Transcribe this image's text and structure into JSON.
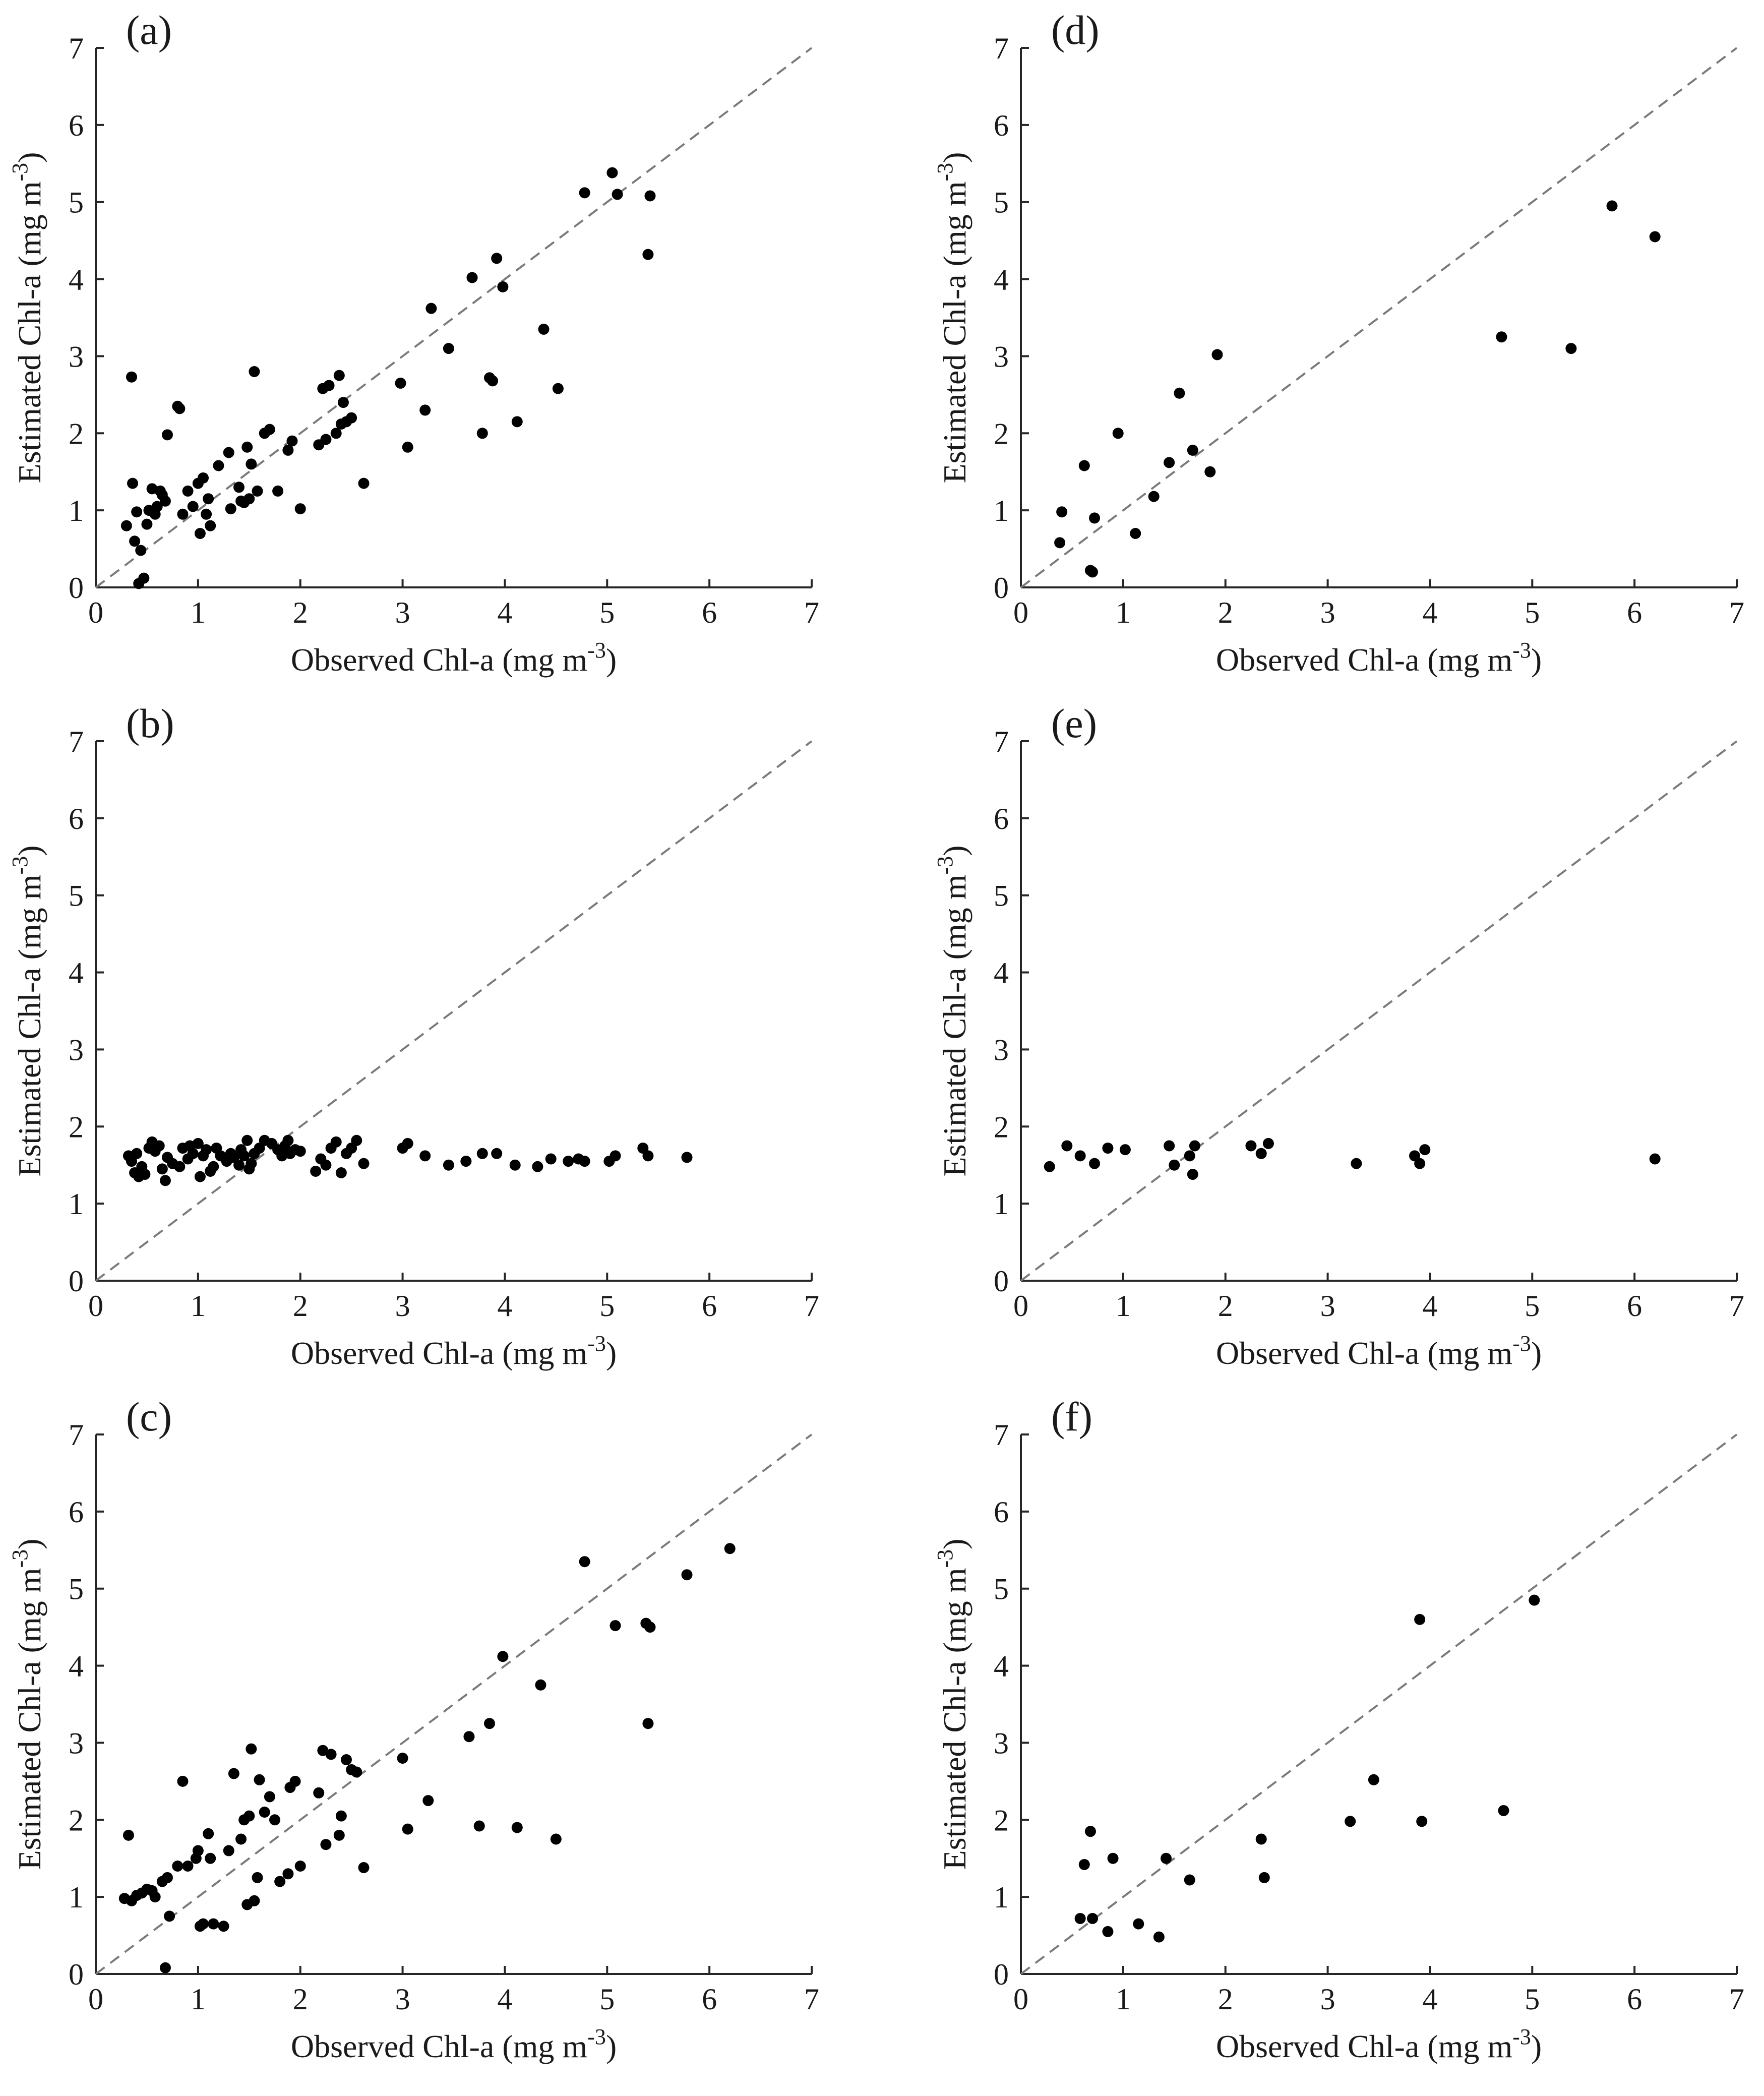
{
  "chart_data": [
    {
      "id": "a",
      "type": "scatter",
      "panel_label": "(a)",
      "xlabel": "Observed Chl-a (mg m",
      "ylabel": "Estimated Chl-a (mg m",
      "unit_exponent": "-3",
      "closing_paren": ")",
      "xlim": [
        0,
        7
      ],
      "ylim": [
        0,
        7
      ],
      "xticks": [
        "0",
        "1",
        "2",
        "3",
        "4",
        "5",
        "6",
        "7"
      ],
      "yticks": [
        "0",
        "1",
        "2",
        "3",
        "4",
        "5",
        "6",
        "7"
      ],
      "reference_line": "1:1 dashed",
      "points": [
        [
          0.3,
          0.8
        ],
        [
          0.35,
          2.73
        ],
        [
          0.36,
          1.35
        ],
        [
          0.38,
          0.6
        ],
        [
          0.4,
          0.98
        ],
        [
          0.42,
          0.05
        ],
        [
          0.44,
          0.48
        ],
        [
          0.47,
          0.12
        ],
        [
          0.5,
          0.82
        ],
        [
          0.52,
          1.0
        ],
        [
          0.55,
          1.28
        ],
        [
          0.58,
          0.95
        ],
        [
          0.6,
          1.05
        ],
        [
          0.63,
          1.25
        ],
        [
          0.65,
          1.2
        ],
        [
          0.68,
          1.12
        ],
        [
          0.7,
          1.98
        ],
        [
          0.8,
          2.35
        ],
        [
          0.82,
          2.32
        ],
        [
          0.85,
          0.95
        ],
        [
          0.9,
          1.25
        ],
        [
          0.95,
          1.05
        ],
        [
          1.0,
          1.35
        ],
        [
          1.02,
          0.7
        ],
        [
          1.05,
          1.42
        ],
        [
          1.08,
          0.95
        ],
        [
          1.1,
          1.15
        ],
        [
          1.12,
          0.8
        ],
        [
          1.2,
          1.58
        ],
        [
          1.3,
          1.75
        ],
        [
          1.32,
          1.02
        ],
        [
          1.4,
          1.3
        ],
        [
          1.42,
          1.12
        ],
        [
          1.45,
          1.1
        ],
        [
          1.48,
          1.82
        ],
        [
          1.5,
          1.15
        ],
        [
          1.52,
          1.6
        ],
        [
          1.55,
          2.8
        ],
        [
          1.58,
          1.25
        ],
        [
          1.65,
          2.0
        ],
        [
          1.7,
          2.05
        ],
        [
          1.78,
          1.25
        ],
        [
          1.88,
          1.78
        ],
        [
          1.92,
          1.9
        ],
        [
          2.0,
          1.02
        ],
        [
          2.18,
          1.85
        ],
        [
          2.22,
          2.58
        ],
        [
          2.25,
          1.92
        ],
        [
          2.28,
          2.62
        ],
        [
          2.35,
          2.0
        ],
        [
          2.38,
          2.75
        ],
        [
          2.4,
          2.12
        ],
        [
          2.42,
          2.4
        ],
        [
          2.45,
          2.15
        ],
        [
          2.5,
          2.2
        ],
        [
          2.62,
          1.35
        ],
        [
          2.98,
          2.65
        ],
        [
          3.05,
          1.82
        ],
        [
          3.22,
          2.3
        ],
        [
          3.28,
          3.62
        ],
        [
          3.45,
          3.1
        ],
        [
          3.68,
          4.02
        ],
        [
          3.78,
          2.0
        ],
        [
          3.85,
          2.72
        ],
        [
          3.88,
          2.68
        ],
        [
          3.92,
          4.27
        ],
        [
          3.98,
          3.9
        ],
        [
          4.12,
          2.15
        ],
        [
          4.38,
          3.35
        ],
        [
          4.52,
          2.58
        ],
        [
          4.78,
          5.12
        ],
        [
          5.05,
          5.38
        ],
        [
          5.1,
          5.1
        ],
        [
          5.4,
          4.32
        ],
        [
          5.42,
          5.08
        ]
      ]
    },
    {
      "id": "b",
      "type": "scatter",
      "panel_label": "(b)",
      "xlabel": "Observed Chl-a (mg m",
      "ylabel": "Estimated Chl-a (mg m",
      "unit_exponent": "-3",
      "closing_paren": ")",
      "xlim": [
        0,
        7
      ],
      "ylim": [
        0,
        7
      ],
      "xticks": [
        "0",
        "1",
        "2",
        "3",
        "4",
        "5",
        "6",
        "7"
      ],
      "yticks": [
        "0",
        "1",
        "2",
        "3",
        "4",
        "5",
        "6",
        "7"
      ],
      "reference_line": "1:1 dashed",
      "points": [
        [
          0.32,
          1.62
        ],
        [
          0.35,
          1.55
        ],
        [
          0.38,
          1.4
        ],
        [
          0.4,
          1.65
        ],
        [
          0.42,
          1.35
        ],
        [
          0.45,
          1.48
        ],
        [
          0.48,
          1.38
        ],
        [
          0.52,
          1.72
        ],
        [
          0.55,
          1.8
        ],
        [
          0.58,
          1.68
        ],
        [
          0.62,
          1.75
        ],
        [
          0.65,
          1.45
        ],
        [
          0.68,
          1.3
        ],
        [
          0.7,
          1.6
        ],
        [
          0.75,
          1.52
        ],
        [
          0.82,
          1.48
        ],
        [
          0.85,
          1.72
        ],
        [
          0.9,
          1.58
        ],
        [
          0.92,
          1.75
        ],
        [
          0.95,
          1.65
        ],
        [
          1.0,
          1.78
        ],
        [
          1.02,
          1.35
        ],
        [
          1.05,
          1.62
        ],
        [
          1.08,
          1.7
        ],
        [
          1.12,
          1.42
        ],
        [
          1.15,
          1.48
        ],
        [
          1.18,
          1.72
        ],
        [
          1.22,
          1.62
        ],
        [
          1.28,
          1.55
        ],
        [
          1.32,
          1.65
        ],
        [
          1.35,
          1.6
        ],
        [
          1.4,
          1.5
        ],
        [
          1.42,
          1.7
        ],
        [
          1.45,
          1.62
        ],
        [
          1.48,
          1.82
        ],
        [
          1.5,
          1.45
        ],
        [
          1.52,
          1.52
        ],
        [
          1.55,
          1.65
        ],
        [
          1.6,
          1.72
        ],
        [
          1.65,
          1.82
        ],
        [
          1.72,
          1.78
        ],
        [
          1.78,
          1.7
        ],
        [
          1.82,
          1.62
        ],
        [
          1.85,
          1.75
        ],
        [
          1.88,
          1.82
        ],
        [
          1.9,
          1.65
        ],
        [
          1.95,
          1.7
        ],
        [
          2.0,
          1.68
        ],
        [
          2.15,
          1.42
        ],
        [
          2.2,
          1.58
        ],
        [
          2.25,
          1.5
        ],
        [
          2.3,
          1.72
        ],
        [
          2.35,
          1.8
        ],
        [
          2.4,
          1.4
        ],
        [
          2.45,
          1.65
        ],
        [
          2.5,
          1.72
        ],
        [
          2.55,
          1.82
        ],
        [
          2.62,
          1.52
        ],
        [
          3.0,
          1.72
        ],
        [
          3.05,
          1.78
        ],
        [
          3.22,
          1.62
        ],
        [
          3.45,
          1.5
        ],
        [
          3.62,
          1.55
        ],
        [
          3.78,
          1.65
        ],
        [
          3.92,
          1.65
        ],
        [
          4.1,
          1.5
        ],
        [
          4.32,
          1.48
        ],
        [
          4.45,
          1.58
        ],
        [
          4.62,
          1.55
        ],
        [
          4.72,
          1.58
        ],
        [
          4.78,
          1.55
        ],
        [
          5.02,
          1.55
        ],
        [
          5.08,
          1.62
        ],
        [
          5.35,
          1.72
        ],
        [
          5.4,
          1.62
        ],
        [
          5.78,
          1.6
        ]
      ]
    },
    {
      "id": "c",
      "type": "scatter",
      "panel_label": "(c)",
      "xlabel": "Observed Chl-a (mg m",
      "ylabel": "Estimated Chl-a (mg m",
      "unit_exponent": "-3",
      "closing_paren": ")",
      "xlim": [
        0,
        7
      ],
      "ylim": [
        0,
        7
      ],
      "xticks": [
        "0",
        "1",
        "2",
        "3",
        "4",
        "5",
        "6",
        "7"
      ],
      "yticks": [
        "0",
        "1",
        "2",
        "3",
        "4",
        "5",
        "6",
        "7"
      ],
      "reference_line": "1:1 dashed",
      "points": [
        [
          0.28,
          0.98
        ],
        [
          0.32,
          1.8
        ],
        [
          0.35,
          0.95
        ],
        [
          0.4,
          1.02
        ],
        [
          0.45,
          1.05
        ],
        [
          0.5,
          1.1
        ],
        [
          0.55,
          1.08
        ],
        [
          0.58,
          1.0
        ],
        [
          0.65,
          1.2
        ],
        [
          0.68,
          0.08
        ],
        [
          0.7,
          1.25
        ],
        [
          0.72,
          0.75
        ],
        [
          0.8,
          1.4
        ],
        [
          0.85,
          2.5
        ],
        [
          0.9,
          1.4
        ],
        [
          0.98,
          1.5
        ],
        [
          1.0,
          1.6
        ],
        [
          1.02,
          0.62
        ],
        [
          1.05,
          0.65
        ],
        [
          1.1,
          1.82
        ],
        [
          1.12,
          1.5
        ],
        [
          1.15,
          0.65
        ],
        [
          1.25,
          0.62
        ],
        [
          1.3,
          1.6
        ],
        [
          1.35,
          2.6
        ],
        [
          1.42,
          1.75
        ],
        [
          1.45,
          2.0
        ],
        [
          1.48,
          0.9
        ],
        [
          1.5,
          2.05
        ],
        [
          1.52,
          2.92
        ],
        [
          1.55,
          0.95
        ],
        [
          1.58,
          1.25
        ],
        [
          1.6,
          2.52
        ],
        [
          1.65,
          2.1
        ],
        [
          1.7,
          2.3
        ],
        [
          1.75,
          2.0
        ],
        [
          1.8,
          1.2
        ],
        [
          1.88,
          1.3
        ],
        [
          1.9,
          2.42
        ],
        [
          1.95,
          2.5
        ],
        [
          2.0,
          1.4
        ],
        [
          2.18,
          2.35
        ],
        [
          2.22,
          2.9
        ],
        [
          2.25,
          1.68
        ],
        [
          2.3,
          2.85
        ],
        [
          2.38,
          1.8
        ],
        [
          2.4,
          2.05
        ],
        [
          2.45,
          2.78
        ],
        [
          2.5,
          2.65
        ],
        [
          2.55,
          2.62
        ],
        [
          2.62,
          1.38
        ],
        [
          3.0,
          2.8
        ],
        [
          3.05,
          1.88
        ],
        [
          3.25,
          2.25
        ],
        [
          3.65,
          3.08
        ],
        [
          3.75,
          1.92
        ],
        [
          3.85,
          3.25
        ],
        [
          3.98,
          4.12
        ],
        [
          4.12,
          1.9
        ],
        [
          4.35,
          3.75
        ],
        [
          4.5,
          1.75
        ],
        [
          4.78,
          5.35
        ],
        [
          5.08,
          4.52
        ],
        [
          5.38,
          4.55
        ],
        [
          5.4,
          3.25
        ],
        [
          5.42,
          4.5
        ],
        [
          5.78,
          5.18
        ],
        [
          6.2,
          5.52
        ]
      ]
    },
    {
      "id": "d",
      "type": "scatter",
      "panel_label": "(d)",
      "xlabel": "Observed Chl-a (mg m",
      "ylabel": "Estimated Chl-a (mg m",
      "unit_exponent": "-3",
      "closing_paren": ")",
      "xlim": [
        0,
        7
      ],
      "ylim": [
        0,
        7
      ],
      "xticks": [
        "0",
        "1",
        "2",
        "3",
        "4",
        "5",
        "6",
        "7"
      ],
      "yticks": [
        "0",
        "1",
        "2",
        "3",
        "4",
        "5",
        "6",
        "7"
      ],
      "reference_line": "1:1 dashed",
      "points": [
        [
          0.38,
          0.58
        ],
        [
          0.4,
          0.98
        ],
        [
          0.62,
          1.58
        ],
        [
          0.68,
          0.22
        ],
        [
          0.7,
          0.2
        ],
        [
          0.72,
          0.9
        ],
        [
          0.95,
          2.0
        ],
        [
          1.12,
          0.7
        ],
        [
          1.3,
          1.18
        ],
        [
          1.45,
          1.62
        ],
        [
          1.55,
          2.52
        ],
        [
          1.68,
          1.78
        ],
        [
          1.85,
          1.5
        ],
        [
          1.92,
          3.02
        ],
        [
          4.7,
          3.25
        ],
        [
          5.38,
          3.1
        ],
        [
          5.78,
          4.95
        ],
        [
          6.2,
          4.55
        ]
      ]
    },
    {
      "id": "e",
      "type": "scatter",
      "panel_label": "(e)",
      "xlabel": "Observed Chl-a (mg m",
      "ylabel": "Estimated Chl-a (mg m",
      "unit_exponent": "-3",
      "closing_paren": ")",
      "xlim": [
        0,
        7
      ],
      "ylim": [
        0,
        7
      ],
      "xticks": [
        "0",
        "1",
        "2",
        "3",
        "4",
        "5",
        "6",
        "7"
      ],
      "yticks": [
        "0",
        "1",
        "2",
        "3",
        "4",
        "5",
        "6",
        "7"
      ],
      "reference_line": "1:1 dashed",
      "points": [
        [
          0.28,
          1.48
        ],
        [
          0.45,
          1.75
        ],
        [
          0.58,
          1.62
        ],
        [
          0.72,
          1.52
        ],
        [
          0.85,
          1.72
        ],
        [
          1.02,
          1.7
        ],
        [
          1.45,
          1.75
        ],
        [
          1.5,
          1.5
        ],
        [
          1.65,
          1.62
        ],
        [
          1.68,
          1.38
        ],
        [
          1.7,
          1.75
        ],
        [
          2.25,
          1.75
        ],
        [
          2.35,
          1.65
        ],
        [
          2.42,
          1.78
        ],
        [
          3.28,
          1.52
        ],
        [
          3.85,
          1.62
        ],
        [
          3.9,
          1.52
        ],
        [
          3.95,
          1.7
        ],
        [
          6.2,
          1.58
        ]
      ]
    },
    {
      "id": "f",
      "type": "scatter",
      "panel_label": "(f)",
      "xlabel": "Observed Chl-a (mg m",
      "ylabel": "Estimated Chl-a (mg m",
      "unit_exponent": "-3",
      "closing_paren": ")",
      "xlim": [
        0,
        7
      ],
      "ylim": [
        0,
        7
      ],
      "xticks": [
        "0",
        "1",
        "2",
        "3",
        "4",
        "5",
        "6",
        "7"
      ],
      "yticks": [
        "0",
        "1",
        "2",
        "3",
        "4",
        "5",
        "6",
        "7"
      ],
      "reference_line": "1:1 dashed",
      "points": [
        [
          0.58,
          0.72
        ],
        [
          0.62,
          1.42
        ],
        [
          0.68,
          1.85
        ],
        [
          0.7,
          0.72
        ],
        [
          0.85,
          0.55
        ],
        [
          0.9,
          1.5
        ],
        [
          1.15,
          0.65
        ],
        [
          1.35,
          0.48
        ],
        [
          1.42,
          1.5
        ],
        [
          1.65,
          1.22
        ],
        [
          2.35,
          1.75
        ],
        [
          2.38,
          1.25
        ],
        [
          3.22,
          1.98
        ],
        [
          3.45,
          2.52
        ],
        [
          3.9,
          4.6
        ],
        [
          3.92,
          1.98
        ],
        [
          4.72,
          2.12
        ],
        [
          5.02,
          4.85
        ]
      ]
    }
  ]
}
